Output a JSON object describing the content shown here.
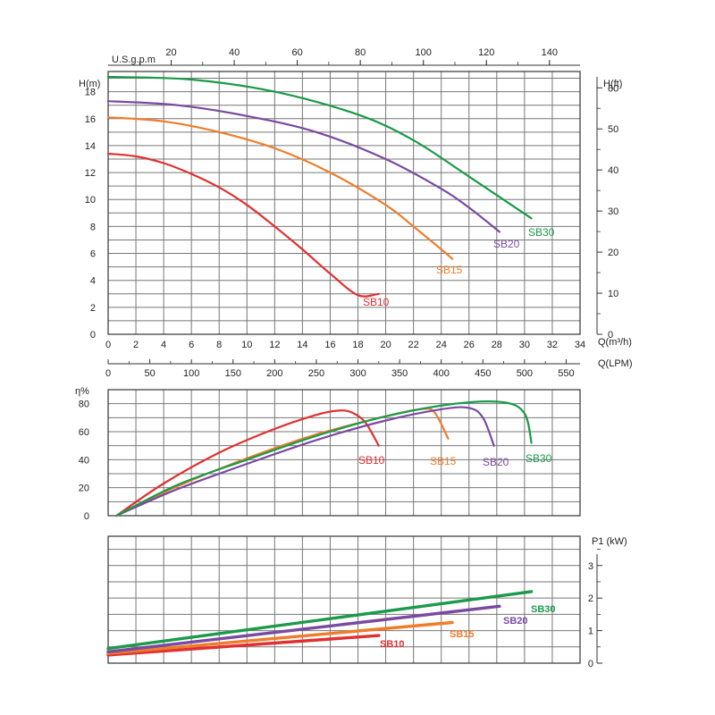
{
  "colors": {
    "SB10": "#e03030",
    "SB15": "#ee7d2a",
    "SB20": "#7a4aa0",
    "SB30": "#1a9a4a",
    "grid": "#777777",
    "axis": "#333333"
  },
  "chart_data": [
    {
      "type": "line",
      "title": "",
      "xlabel": "Q(m³/h)",
      "xlabel_top": "U.S.g.p.m",
      "xlabel_bottom": "Q(LPM)",
      "ylabel": "H(m)",
      "ylabel_right": "H(ft)",
      "xlim": [
        0,
        34
      ],
      "ylim": [
        0,
        19.5
      ],
      "grid": true,
      "x_ticks": [
        "0",
        "2",
        "4",
        "6",
        "8",
        "10",
        "12",
        "14",
        "16",
        "18",
        "20",
        "22",
        "24",
        "26",
        "28",
        "30",
        "32",
        "34"
      ],
      "y_ticks": [
        "0",
        "2",
        "4",
        "6",
        "8",
        "10",
        "12",
        "14",
        "16",
        "18"
      ],
      "usgpm_ticks": [
        "20",
        "40",
        "60",
        "80",
        "100",
        "120",
        "140"
      ],
      "ft_ticks": [
        "0",
        "10",
        "20",
        "30",
        "40",
        "50",
        "60"
      ],
      "lpm_ticks": [
        "0",
        "50",
        "100",
        "150",
        "200",
        "250",
        "300",
        "350",
        "400",
        "450",
        "500",
        "550"
      ],
      "series": [
        {
          "name": "SB10",
          "x": [
            0,
            2,
            4,
            6,
            8,
            10,
            12,
            14,
            16,
            18,
            19.5
          ],
          "y": [
            13.4,
            13.2,
            12.7,
            11.9,
            10.9,
            9.6,
            8.0,
            6.3,
            4.5,
            2.9,
            3.0
          ]
        },
        {
          "name": "SB15",
          "x": [
            0,
            4,
            8,
            12,
            16,
            20,
            22,
            24,
            24.8
          ],
          "y": [
            16.1,
            15.8,
            15.0,
            13.8,
            12.0,
            9.6,
            8.0,
            6.3,
            5.6
          ]
        },
        {
          "name": "SB20",
          "x": [
            0,
            5,
            10,
            15,
            20,
            24,
            26,
            28.2
          ],
          "y": [
            17.3,
            17.0,
            16.2,
            15.0,
            13.0,
            10.8,
            9.4,
            7.6
          ]
        },
        {
          "name": "SB30",
          "x": [
            0,
            6,
            12,
            18,
            22,
            26,
            30.5
          ],
          "y": [
            19.1,
            18.9,
            18.0,
            16.3,
            14.4,
            11.7,
            8.6
          ]
        }
      ]
    },
    {
      "type": "line",
      "title": "",
      "ylabel": "η%",
      "ylim": [
        0,
        90
      ],
      "grid": true,
      "y_ticks": [
        "0",
        "20",
        "40",
        "60",
        "80"
      ],
      "series": [
        {
          "name": "SB10",
          "x": [
            0.6,
            4,
            8,
            12,
            15,
            16.5,
            17.5,
            18.5,
            19.5
          ],
          "y": [
            0,
            23,
            45,
            62,
            72,
            75,
            74,
            67,
            50
          ]
        },
        {
          "name": "SB15",
          "x": [
            0.6,
            5,
            10,
            15,
            20,
            22.5,
            23.5,
            24.5
          ],
          "y": [
            0,
            21,
            41,
            58,
            71,
            76,
            74,
            55
          ]
        },
        {
          "name": "SB20",
          "x": [
            0.6,
            5,
            10,
            15,
            20,
            24,
            26,
            27,
            27.8
          ],
          "y": [
            0,
            19,
            37,
            54,
            68,
            76,
            77,
            70,
            50
          ]
        },
        {
          "name": "SB30",
          "x": [
            0.6,
            5,
            10,
            15,
            20,
            25,
            28.5,
            30,
            30.5
          ],
          "y": [
            0,
            22,
            40,
            57,
            71,
            80,
            81,
            73,
            52
          ]
        }
      ]
    },
    {
      "type": "line",
      "title": "",
      "ylabel": "P1 (kW)",
      "ylim": [
        0,
        3.9
      ],
      "grid": true,
      "y_ticks": [
        "0",
        "1",
        "2",
        "3"
      ],
      "series": [
        {
          "name": "SB10",
          "x": [
            0,
            19.5
          ],
          "y": [
            0.25,
            0.85
          ]
        },
        {
          "name": "SB15",
          "x": [
            0,
            24.8
          ],
          "y": [
            0.3,
            1.25
          ]
        },
        {
          "name": "SB20",
          "x": [
            0,
            28.2
          ],
          "y": [
            0.35,
            1.75
          ]
        },
        {
          "name": "SB30",
          "x": [
            0,
            30.5
          ],
          "y": [
            0.45,
            2.2
          ]
        }
      ]
    }
  ]
}
